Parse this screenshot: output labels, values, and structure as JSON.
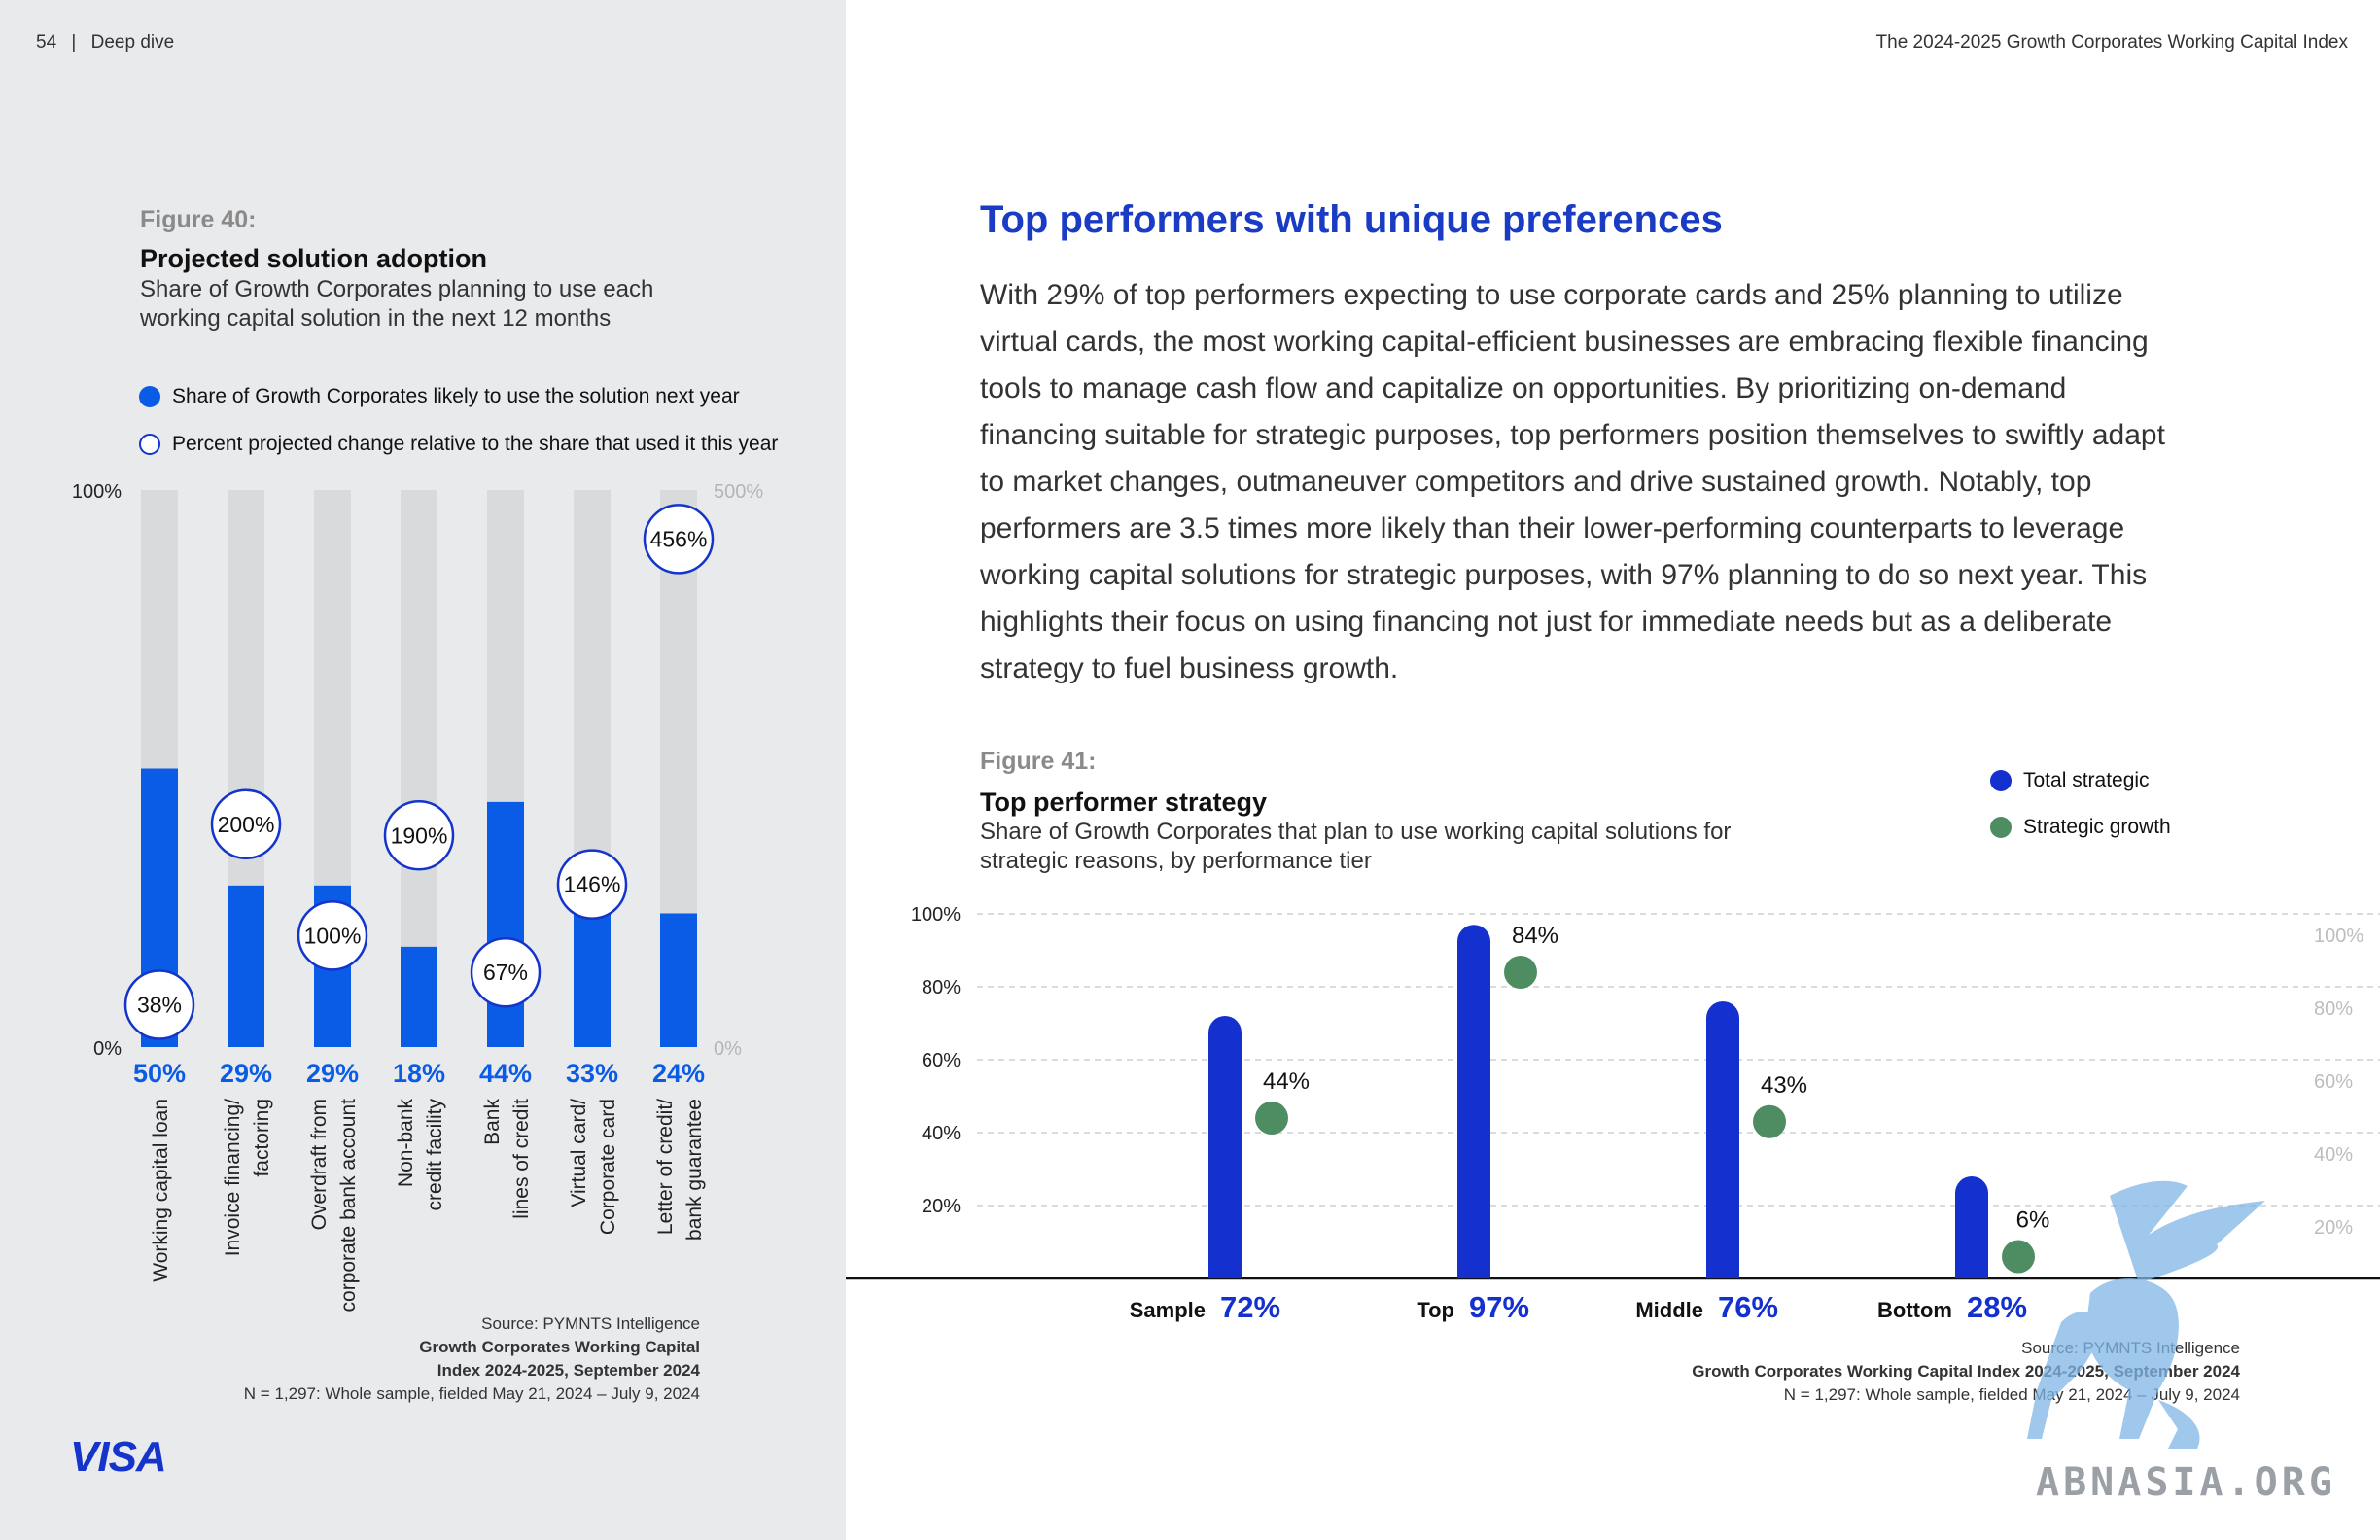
{
  "header": {
    "page_number": "54",
    "section": "Deep dive",
    "doc_title": "The 2024-2025 Growth Corporates Working Capital Index"
  },
  "brand": {
    "logo_text": "VISA",
    "color": "#1434cb"
  },
  "watermark": {
    "text": "ABNASIA.ORG"
  },
  "figure40": {
    "label": "Figure 40:",
    "title": "Projected solution adoption",
    "subtitle_line1": "Share of Growth Corporates planning to use each",
    "subtitle_line2": "working capital solution in the next 12 months",
    "legend": {
      "filled": "Share of Growth Corporates likely to use the solution next year",
      "hollow": "Percent projected change relative to the share that used it this year"
    },
    "source_line1": "Source: PYMNTS Intelligence",
    "source_line2": "Growth Corporates Working Capital",
    "source_line3": "Index 2024-2025, September 2024",
    "source_line4": "N = 1,297: Whole sample, fielded May 21, 2024 – July 9, 2024"
  },
  "article": {
    "title": "Top performers with unique preferences",
    "lines": [
      "With 29% of top performers expecting to use corporate cards and 25% planning to utilize",
      "virtual cards, the most working capital-efficient businesses are embracing flexible financing",
      "tools to manage cash flow and capitalize on opportunities. By prioritizing on-demand",
      "financing suitable for strategic purposes, top performers position themselves to swiftly adapt",
      "to market changes, outmaneuver competitors and drive sustained growth. Notably, top",
      "performers are 3.5 times more likely than their lower-performing counterparts to leverage",
      "working capital solutions for strategic purposes, with 97% planning to do so next year. This",
      "highlights their focus on using financing not just for immediate needs but as a deliberate",
      "strategy to fuel business growth."
    ]
  },
  "figure41": {
    "label": "Figure 41:",
    "title": "Top performer strategy",
    "subtitle_line1": "Share of Growth Corporates that plan to use working capital solutions for",
    "subtitle_line2": "strategic reasons, by performance tier",
    "legend": {
      "total": "Total strategic",
      "growth": "Strategic growth"
    },
    "source_line1": "Source: PYMNTS Intelligence",
    "source_line2": "Growth Corporates Working Capital Index 2024-2025, September 2024",
    "source_line3": "N = 1,297: Whole sample, fielded May 21, 2024 – July 9, 2024"
  },
  "chart_data": [
    {
      "type": "bar",
      "categories": [
        [
          "Working capital loan"
        ],
        [
          "Invoice financing/",
          "factoring"
        ],
        [
          "Overdraft from",
          "corporate bank account"
        ],
        [
          "Non-bank",
          "credit facility"
        ],
        [
          "Bank",
          "lines of credit"
        ],
        [
          "Virtual card/",
          "Corporate card"
        ],
        [
          "Letter of credit/",
          "bank guarantee"
        ]
      ],
      "series": [
        {
          "name": "Share of Growth Corporates likely to use the solution next year",
          "values": [
            50,
            29,
            29,
            18,
            44,
            33,
            24
          ],
          "labels": [
            "50%",
            "29%",
            "29%",
            "18%",
            "44%",
            "33%",
            "24%"
          ],
          "color": "#0a5ce6"
        },
        {
          "name": "Percent projected change relative to the share that used it this year",
          "values": [
            38,
            200,
            100,
            190,
            67,
            146,
            456
          ],
          "labels": [
            "38%",
            "200%",
            "100%",
            "190%",
            "67%",
            "146%",
            "456%"
          ],
          "axis": "right"
        }
      ],
      "y_left": {
        "range": [
          0,
          100
        ],
        "ticks": [
          "0%",
          "100%"
        ]
      },
      "y_right": {
        "range": [
          0,
          500
        ],
        "ticks": [
          "0%",
          "500%"
        ]
      },
      "colors": {
        "bar": "#0a5ce6",
        "track": "#d9dadc",
        "value_label": "#0a5ce6"
      }
    },
    {
      "type": "bar",
      "categories": [
        "Sample",
        "Top",
        "Middle",
        "Bottom"
      ],
      "series": [
        {
          "name": "Total strategic",
          "values": [
            72,
            97,
            76,
            28
          ],
          "labels": [
            "72%",
            "97%",
            "76%",
            "28%"
          ],
          "color": "#1431d0"
        },
        {
          "name": "Strategic growth",
          "values": [
            44,
            84,
            43,
            6
          ],
          "labels": [
            "44%",
            "84%",
            "43%",
            "6%"
          ],
          "color": "#4e8c62"
        }
      ],
      "ylim": [
        0,
        100
      ],
      "y_ticks_left": [
        "20%",
        "40%",
        "60%",
        "80%",
        "100%"
      ],
      "y_ticks_right": [
        "20%",
        "40%",
        "60%",
        "80%",
        "100%"
      ],
      "grid": true
    }
  ]
}
